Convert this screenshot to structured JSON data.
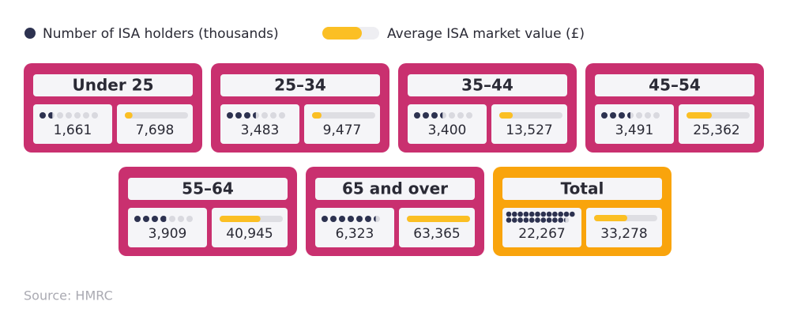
{
  "chart_data": {
    "type": "tile-grid",
    "categories": [
      "Under 25",
      "25–34",
      "35–44",
      "45–54",
      "55–64",
      "65 and over",
      "Total"
    ],
    "series": [
      {
        "name": "Number of ISA holders (thousands)",
        "color": "#2d3250",
        "values": [
          1661,
          3483,
          3400,
          3491,
          3909,
          6323,
          22267
        ],
        "value_labels": [
          "1,661",
          "3,483",
          "3,400",
          "3,491",
          "3,909",
          "6,323",
          "22,267"
        ]
      },
      {
        "name": "Average ISA market value (£)",
        "color": "#fbbf24",
        "values": [
          7698,
          9477,
          13527,
          25362,
          40945,
          63365,
          33278
        ],
        "value_labels": [
          "7,698",
          "9,477",
          "13,527",
          "25,362",
          "40,945",
          "63,365",
          "33,278"
        ]
      }
    ],
    "source": "Source: HMRC"
  }
}
